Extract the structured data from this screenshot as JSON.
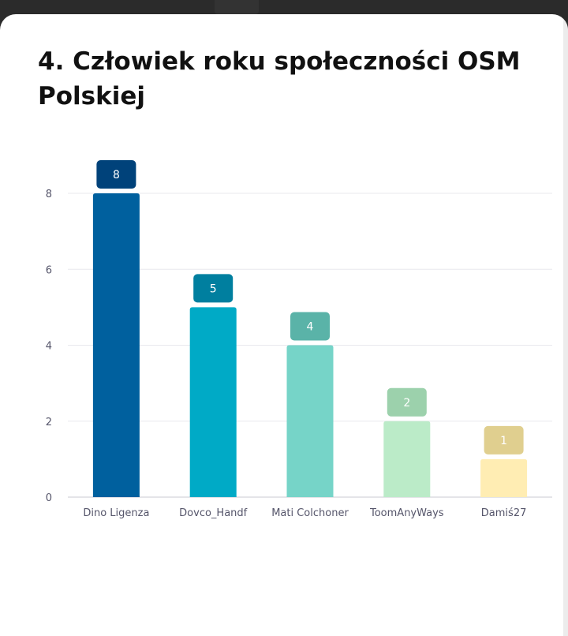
{
  "page": {
    "title": "4. Człowiek roku społeczności OSM Polskiej"
  },
  "chart_data": {
    "type": "bar",
    "title": "4. Człowiek roku społeczności OSM Polskiej",
    "categories": [
      "Dino Ligenza",
      "Dovco_Handf",
      "Mati Colchoner",
      "ToomAnyWays",
      "Damiś27"
    ],
    "values": [
      8,
      5,
      4,
      2,
      1
    ],
    "xlabel": "",
    "ylabel": "",
    "ylim": [
      0,
      8
    ],
    "yticks": [
      0,
      2,
      4,
      6,
      8
    ],
    "grid": true,
    "legend": "none",
    "bar_colors": [
      "#00609e",
      "#00aac6",
      "#76d4c8",
      "#bbebc8",
      "#ffedb3"
    ],
    "label_colors": [
      "#00427a",
      "#007f9f",
      "#5ab3a8",
      "#9cd1ac",
      "#e0cf8f"
    ],
    "gridline_color": "#e8e8ee"
  }
}
